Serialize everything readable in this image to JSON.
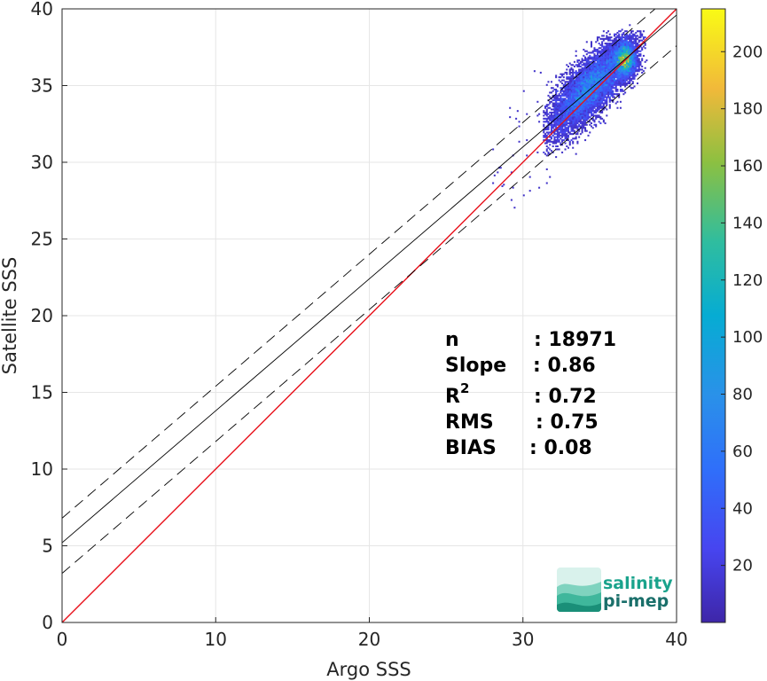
{
  "chart_data": {
    "type": "heatmap",
    "subtype": "density-scatter",
    "xlabel": "Argo SSS",
    "ylabel": "Satellite SSS",
    "xlim": [
      0,
      40
    ],
    "ylim": [
      0,
      40
    ],
    "xticks": [
      "0",
      "10",
      "20",
      "30",
      "40"
    ],
    "yticks": [
      "0",
      "5",
      "10",
      "15",
      "20",
      "25",
      "30",
      "35",
      "40"
    ],
    "grid": true,
    "cluster": {
      "x_range": [
        31.5,
        38
      ],
      "y_range": [
        31.5,
        38.5
      ],
      "peak": [
        36.7,
        36.8
      ],
      "peak_count": 215
    },
    "lines": [
      {
        "name": "identity",
        "color": "#e8101a",
        "style": "solid",
        "intercept": 0,
        "slope": 1
      },
      {
        "name": "regression",
        "color": "#000000",
        "style": "solid",
        "intercept": 5.2,
        "slope": 0.86
      },
      {
        "name": "regression-upper",
        "color": "#000000",
        "style": "dashed",
        "intercept": 6.8,
        "slope": 0.86
      },
      {
        "name": "regression-lower",
        "color": "#000000",
        "style": "dashed",
        "intercept": 3.2,
        "slope": 0.86
      }
    ],
    "colorbar": {
      "min": 0,
      "max": 215,
      "ticks": [
        "20",
        "40",
        "60",
        "80",
        "100",
        "120",
        "140",
        "160",
        "180",
        "200"
      ],
      "colormap": "parula"
    },
    "stats": [
      {
        "label": "n",
        "value": ": 18971"
      },
      {
        "label": "Slope",
        "value": ": 0.86"
      },
      {
        "label": "R",
        "sup": "2",
        "value": ": 0.72"
      },
      {
        "label": "RMS",
        "value": ": 0.75"
      },
      {
        "label": "BIAS",
        "value": ": 0.08"
      }
    ]
  },
  "logo": {
    "line1": "salinity",
    "line2": "pi-mep",
    "color": "#1aa38c"
  }
}
